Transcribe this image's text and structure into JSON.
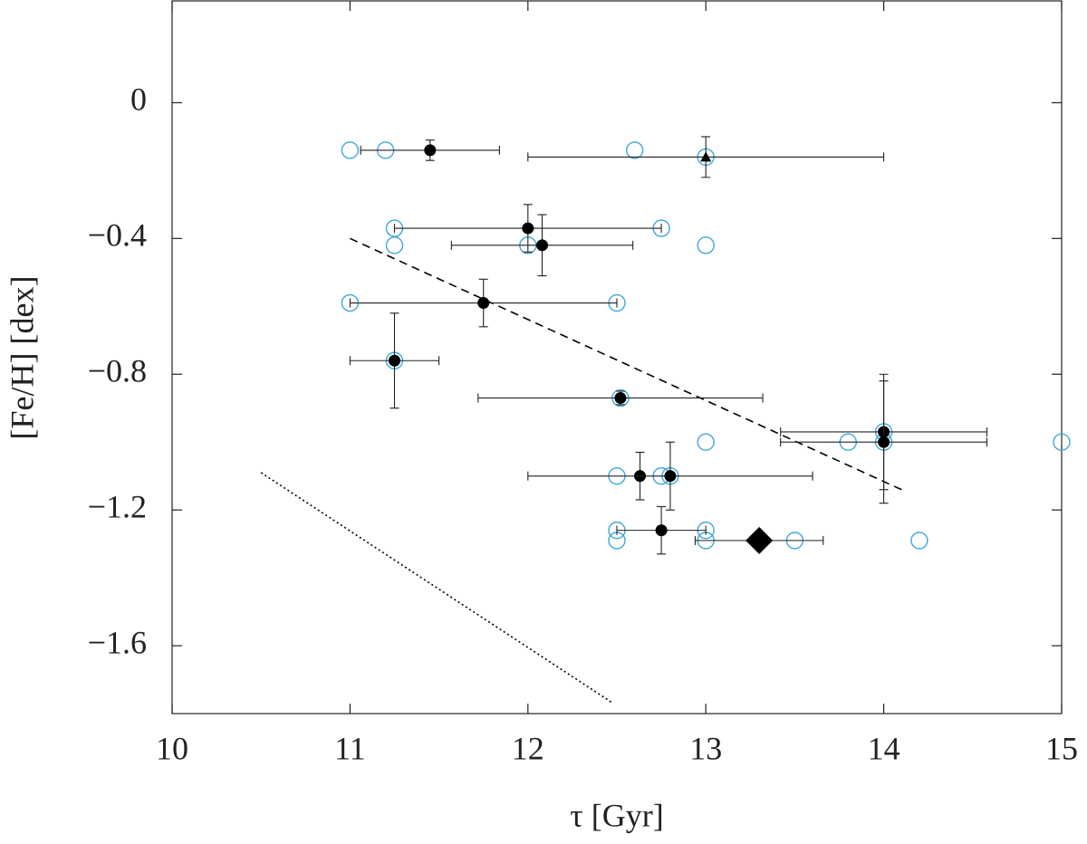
{
  "chart_data": {
    "type": "scatter",
    "xlabel": "τ [Gyr]",
    "ylabel": "[Fe/H]  [dex]",
    "xlim": [
      10,
      15
    ],
    "ylim": [
      -1.8,
      0.3
    ],
    "xticks": [
      10,
      11,
      12,
      13,
      14,
      15
    ],
    "yticks": [
      {
        "value": 0,
        "label": "0"
      },
      {
        "value": -0.4,
        "label": "−0.4"
      },
      {
        "value": -0.8,
        "label": "−0.8"
      },
      {
        "value": -1.2,
        "label": "−1.2"
      },
      {
        "value": -1.6,
        "label": "−1.6"
      }
    ],
    "series": [
      {
        "marker": "open-circle",
        "color": "#3fa8d8",
        "x": [
          11.0,
          11.2,
          12.6,
          13.0,
          11.25,
          11.25,
          12.0,
          12.75,
          13.0,
          11.0,
          12.5,
          11.25,
          12.52,
          13.0,
          13.8,
          14.0,
          14.0,
          15.0,
          12.5,
          12.75,
          12.8,
          12.5,
          12.5,
          13.0,
          13.0,
          13.5,
          14.2
        ],
        "y": [
          -0.14,
          -0.14,
          -0.14,
          -0.16,
          -0.37,
          -0.42,
          -0.42,
          -0.37,
          -0.42,
          -0.59,
          -0.59,
          -0.76,
          -0.87,
          -1.0,
          -1.0,
          -0.97,
          -1.0,
          -1.0,
          -1.1,
          -1.1,
          -1.1,
          -1.26,
          -1.29,
          -1.26,
          -1.29,
          -1.29,
          -1.29
        ]
      },
      {
        "marker": "circle",
        "color": "#000000",
        "x": [
          11.45,
          12.0,
          12.08,
          11.75,
          11.25,
          12.52,
          14.0,
          14.0,
          12.63,
          12.8,
          12.75
        ],
        "y": [
          -0.14,
          -0.37,
          -0.42,
          -0.59,
          -0.76,
          -0.87,
          -0.97,
          -1.0,
          -1.1,
          -1.1,
          -1.26
        ],
        "xerr": [
          0.39,
          0.75,
          0.51,
          0.75,
          0.25,
          0.8,
          0.58,
          0.58,
          null,
          0.8,
          0.25
        ],
        "yerr": [
          0.03,
          0.07,
          0.09,
          0.07,
          0.14,
          0.02,
          0.17,
          0.18,
          0.07,
          0.1,
          0.07
        ]
      },
      {
        "marker": "triangle",
        "color": "#000000",
        "x": [
          13.0
        ],
        "y": [
          -0.16
        ],
        "xerr": [
          1.0
        ],
        "yerr": [
          0.06
        ]
      },
      {
        "marker": "diamond",
        "color": "#000000",
        "x": [
          13.3
        ],
        "y": [
          -1.29
        ],
        "xerr": [
          0.36
        ],
        "yerr": [
          null
        ]
      }
    ],
    "lines": [
      {
        "style": "dashed",
        "color": "#000000",
        "x": [
          11.0,
          14.1
        ],
        "y": [
          -0.4,
          -1.14
        ]
      },
      {
        "style": "dotted",
        "color": "#000000",
        "x": [
          10.5,
          12.48
        ],
        "y": [
          -1.09,
          -1.77
        ]
      }
    ]
  }
}
